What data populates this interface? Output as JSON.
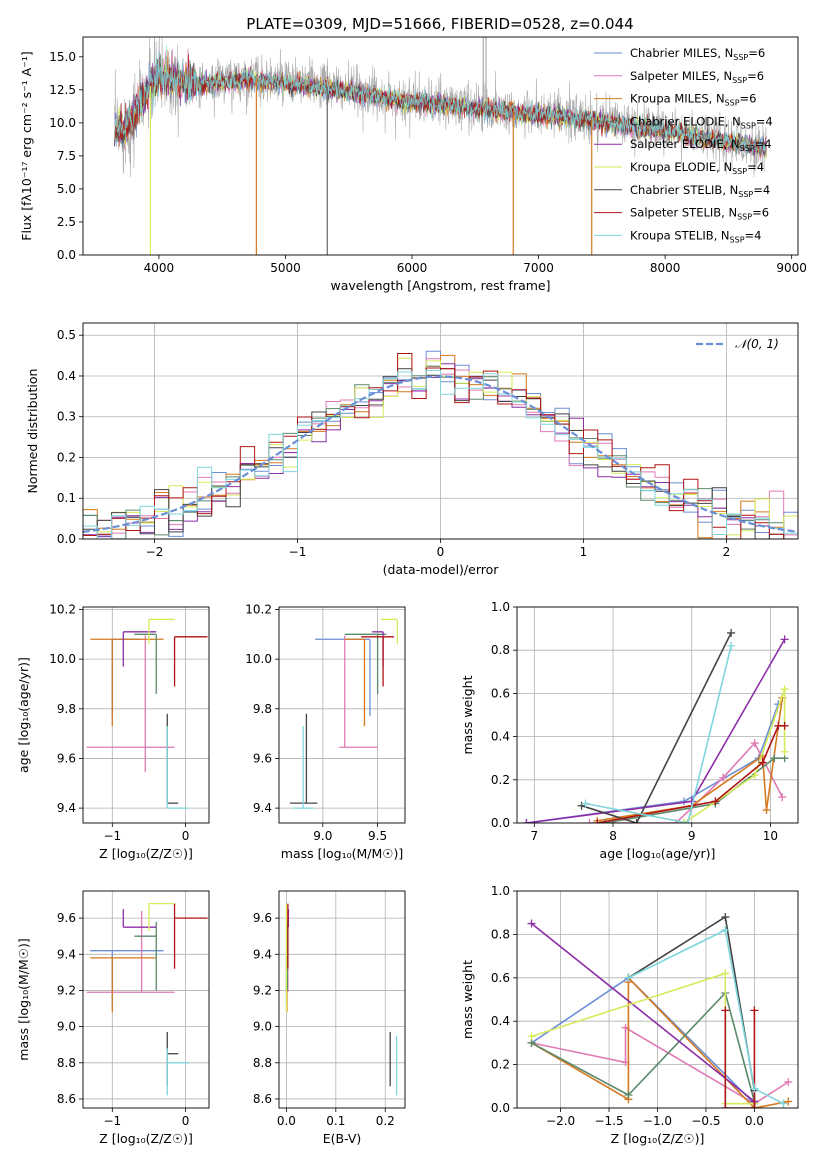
{
  "figure": {
    "title": "PLATE=0309, MJD=51666, FIBERID=0528, z=0.044"
  },
  "chart_data": [
    {
      "id": "spectrum",
      "type": "line",
      "xlabel": "wavelength [Angstrom, rest frame]",
      "ylabel": "Flux [fλ10⁻¹⁷ erg cm⁻² s⁻¹ A⁻¹]",
      "xlim": [
        3400,
        9050
      ],
      "ylim": [
        0,
        16.5
      ],
      "xticks": [
        4000,
        5000,
        6000,
        7000,
        8000,
        9000
      ],
      "yticks": [
        0.0,
        2.5,
        5.0,
        7.5,
        10.0,
        12.5,
        15.0
      ],
      "data_spectrum": {
        "color": "#aaaaaa",
        "x": [
          3650,
          3750,
          3900,
          4000,
          4100,
          4300,
          4500,
          4700,
          5000,
          5300,
          5600,
          5900,
          6200,
          6500,
          6800,
          7100,
          7400,
          7700,
          8000,
          8300,
          8600,
          8800
        ],
        "y": [
          9.5,
          9.7,
          12.3,
          13.8,
          13.5,
          13.0,
          13.2,
          13.4,
          13.1,
          12.8,
          12.3,
          11.8,
          11.5,
          11.2,
          10.9,
          10.6,
          10.3,
          9.9,
          9.5,
          9.0,
          8.5,
          8.1
        ]
      },
      "legend": [
        {
          "name": "Chabrier MILES, N",
          "sub": "SSP",
          "suffix": "=6",
          "color": "#6b8fd6"
        },
        {
          "name": "Salpeter MILES, N",
          "sub": "SSP",
          "suffix": "=6",
          "color": "#e07ab5"
        },
        {
          "name": "Kroupa MILES, N",
          "sub": "SSP",
          "suffix": "=6",
          "color": "#d5791f"
        },
        {
          "name": "Chabrier ELODIE, N",
          "sub": "SSP",
          "suffix": "=4",
          "color": "#5b8a6b"
        },
        {
          "name": "Salpeter ELODIE, N",
          "sub": "SSP",
          "suffix": "=4",
          "color": "#8c2ea8"
        },
        {
          "name": "Kroupa ELODIE, N",
          "sub": "SSP",
          "suffix": "=4",
          "color": "#d6ea5a"
        },
        {
          "name": "Chabrier STELIB, N",
          "sub": "SSP",
          "suffix": "=4",
          "color": "#444444"
        },
        {
          "name": "Salpeter STELIB, N",
          "sub": "SSP",
          "suffix": "=6",
          "color": "#b01515"
        },
        {
          "name": "Kroupa STELIB, N",
          "sub": "SSP",
          "suffix": "=4",
          "color": "#7fd6dc"
        }
      ]
    },
    {
      "id": "residuals",
      "type": "line",
      "xlabel": "(data-model)/error",
      "ylabel": "Normed distribution",
      "xlim": [
        -2.5,
        2.5
      ],
      "ylim": [
        0,
        0.53
      ],
      "xticks": [
        -2,
        -1,
        0,
        1,
        2
      ],
      "xtick_labels": [
        "−2",
        "−1",
        "0",
        "1",
        "2"
      ],
      "yticks": [
        0.0,
        0.1,
        0.2,
        0.3,
        0.4,
        0.5
      ],
      "legend": [
        {
          "name": "𝒩(0, 1)",
          "color": "#6b8fd6",
          "style": "dashed"
        }
      ],
      "bin_width": 0.1
    },
    {
      "id": "age_vs_Z",
      "type": "scatter",
      "xlabel": "Z [log₁₀(Z/Z☉)]",
      "ylabel": "age  [log₁₀(age/yr)]",
      "xlim": [
        -1.4,
        0.32
      ],
      "ylim": [
        9.34,
        10.21
      ],
      "xticks": [
        -1,
        0
      ],
      "xtick_labels": [
        "−1",
        "0"
      ],
      "yticks": [
        9.4,
        9.6,
        9.8,
        10.0,
        10.2
      ],
      "points": [
        {
          "x": -1.0,
          "y": 10.08,
          "ex": [
            -0.4,
            0.0
          ],
          "ey": [
            0.31,
            0.0
          ],
          "color": "#6b8fd6"
        },
        {
          "x": -0.55,
          "y": 9.645,
          "ex": [
            0.8,
            0.4
          ],
          "ey": [
            0.1,
            0.45
          ],
          "color": "#e07ab5"
        },
        {
          "x": -1.0,
          "y": 10.08,
          "ex": [
            0.3,
            0.7
          ],
          "ey": [
            0.35,
            0.0
          ],
          "color": "#d5791f"
        },
        {
          "x": -0.4,
          "y": 10.1,
          "ex": [
            0.3,
            0.0
          ],
          "ey": [
            0.24,
            0.0
          ],
          "color": "#5b8a6b"
        },
        {
          "x": -0.85,
          "y": 10.11,
          "ex": [
            0.0,
            0.45
          ],
          "ey": [
            0.14,
            0.0
          ],
          "color": "#8c2ea8"
        },
        {
          "x": -0.5,
          "y": 10.16,
          "ex": [
            0.0,
            0.35
          ],
          "ey": [
            0.1,
            0.0
          ],
          "color": "#d6ea5a"
        },
        {
          "x": -0.25,
          "y": 9.42,
          "ex": [
            0.0,
            0.15
          ],
          "ey": [
            0.0,
            0.36
          ],
          "color": "#444444"
        },
        {
          "x": -0.15,
          "y": 10.09,
          "ex": [
            0.0,
            0.45
          ],
          "ey": [
            0.2,
            0.0
          ],
          "color": "#b01515"
        },
        {
          "x": -0.25,
          "y": 9.4,
          "ex": [
            0.0,
            0.3
          ],
          "ey": [
            0.0,
            0.33
          ],
          "color": "#7fd6dc"
        }
      ]
    },
    {
      "id": "age_vs_mass",
      "type": "scatter",
      "xlabel": "mass [log₁₀(M/M☉)]",
      "ylabel": "",
      "xlim": [
        8.6,
        9.75
      ],
      "ylim": [
        9.34,
        10.21
      ],
      "xticks": [
        9.0,
        9.5
      ],
      "yticks": [
        9.4,
        9.6,
        9.8,
        10.0,
        10.2
      ],
      "points": [
        {
          "x": 9.43,
          "y": 10.08,
          "ex": [
            0.5,
            0.0
          ],
          "ey": [
            0.31,
            0.0
          ],
          "color": "#6b8fd6"
        },
        {
          "x": 9.2,
          "y": 9.645,
          "ex": [
            0.05,
            0.3
          ],
          "ey": [
            0.0,
            0.45
          ],
          "color": "#e07ab5"
        },
        {
          "x": 9.38,
          "y": 10.08,
          "ex": [
            0.18,
            0.0
          ],
          "ey": [
            0.35,
            0.0
          ],
          "color": "#d5791f"
        },
        {
          "x": 9.5,
          "y": 10.1,
          "ex": [
            0.3,
            0.08
          ],
          "ey": [
            0.24,
            0.0
          ],
          "color": "#5b8a6b"
        },
        {
          "x": 9.55,
          "y": 10.11,
          "ex": [
            0.1,
            0.0
          ],
          "ey": [
            0.14,
            0.0
          ],
          "color": "#8c2ea8"
        },
        {
          "x": 9.68,
          "y": 10.16,
          "ex": [
            0.15,
            0.0
          ],
          "ey": [
            0.1,
            0.0
          ],
          "color": "#d6ea5a"
        },
        {
          "x": 8.85,
          "y": 9.42,
          "ex": [
            0.15,
            0.1
          ],
          "ey": [
            0.0,
            0.36
          ],
          "color": "#444444"
        },
        {
          "x": 9.55,
          "y": 10.09,
          "ex": [
            0.2,
            0.1
          ],
          "ey": [
            0.2,
            0.0
          ],
          "color": "#b01515"
        },
        {
          "x": 8.82,
          "y": 9.4,
          "ex": [
            0.1,
            0.1
          ],
          "ey": [
            0.0,
            0.33
          ],
          "color": "#7fd6dc"
        }
      ]
    },
    {
      "id": "massweight_vs_age",
      "type": "line",
      "xlabel": "age  [log₁₀(age/yr)]",
      "ylabel": "mass weight",
      "xlim": [
        6.78,
        10.35
      ],
      "ylim": [
        0,
        1.0
      ],
      "xticks": [
        7,
        8,
        9,
        10
      ],
      "yticks": [
        0.0,
        0.2,
        0.4,
        0.6,
        0.8,
        1.0
      ],
      "series": [
        {
          "color": "#6b8fd6",
          "x": [
            6.9,
            8.9,
            9.85,
            10.1
          ],
          "y": [
            0.0,
            0.1,
            0.3,
            0.55
          ]
        },
        {
          "color": "#e07ab5",
          "x": [
            7.7,
            8.8,
            9.4,
            9.8,
            10.15
          ],
          "y": [
            0.0,
            0.0,
            0.21,
            0.37,
            0.12
          ]
        },
        {
          "color": "#d5791f",
          "x": [
            7.8,
            9.0,
            9.9,
            9.95,
            10.15
          ],
          "y": [
            0.01,
            0.08,
            0.31,
            0.06,
            0.58
          ]
        },
        {
          "color": "#5b8a6b",
          "x": [
            7.9,
            9.3,
            10.05,
            10.18
          ],
          "y": [
            0.0,
            0.09,
            0.3,
            0.3
          ]
        },
        {
          "color": "#8c2ea8",
          "x": [
            6.9,
            9.0,
            10.18
          ],
          "y": [
            0.0,
            0.1,
            0.85
          ]
        },
        {
          "color": "#d6ea5a",
          "x": [
            8.9,
            9.8,
            10.18,
            10.18
          ],
          "y": [
            0.0,
            0.22,
            0.62,
            0.33
          ]
        },
        {
          "color": "#444444",
          "x": [
            7.6,
            8.3,
            9.5
          ],
          "y": [
            0.08,
            0.0,
            0.88
          ]
        },
        {
          "color": "#b01515",
          "x": [
            7.8,
            9.3,
            9.9,
            10.1,
            10.18
          ],
          "y": [
            0.0,
            0.1,
            0.28,
            0.45,
            0.45
          ]
        },
        {
          "color": "#7fd6dc",
          "x": [
            7.65,
            8.95,
            9.5
          ],
          "y": [
            0.09,
            0.0,
            0.82
          ]
        }
      ]
    },
    {
      "id": "mass_vs_Z",
      "type": "scatter",
      "xlabel": "Z [log₁₀(Z/Z☉)]",
      "ylabel": "mass [log₁₀(M/M☉)]",
      "xlim": [
        -1.4,
        0.32
      ],
      "ylim": [
        8.55,
        9.75
      ],
      "xticks": [
        -1,
        0
      ],
      "xtick_labels": [
        "−1",
        "0"
      ],
      "yticks": [
        8.6,
        8.8,
        9.0,
        9.2,
        9.4,
        9.6
      ],
      "points": [
        {
          "x": -1.0,
          "y": 9.42,
          "ex": [
            0.3,
            0.7
          ],
          "ey": [
            0.3,
            0.0
          ],
          "color": "#6b8fd6"
        },
        {
          "x": -0.6,
          "y": 9.19,
          "ex": [
            0.75,
            0.45
          ],
          "ey": [
            0.0,
            0.45
          ],
          "color": "#e07ab5"
        },
        {
          "x": -1.0,
          "y": 9.38,
          "ex": [
            0.3,
            0.6
          ],
          "ey": [
            0.3,
            0.0
          ],
          "color": "#d5791f"
        },
        {
          "x": -0.4,
          "y": 9.5,
          "ex": [
            0.3,
            0.0
          ],
          "ey": [
            0.3,
            0.08
          ],
          "color": "#5b8a6b"
        },
        {
          "x": -0.85,
          "y": 9.55,
          "ex": [
            0.0,
            0.45
          ],
          "ey": [
            0.0,
            0.1
          ],
          "color": "#8c2ea8"
        },
        {
          "x": -0.5,
          "y": 9.68,
          "ex": [
            0.0,
            0.35
          ],
          "ey": [
            0.15,
            0.0
          ],
          "color": "#d6ea5a"
        },
        {
          "x": -0.25,
          "y": 8.85,
          "ex": [
            0.0,
            0.15
          ],
          "ey": [
            0.18,
            0.12
          ],
          "color": "#444444"
        },
        {
          "x": -0.15,
          "y": 9.6,
          "ex": [
            0.0,
            0.45
          ],
          "ey": [
            0.28,
            0.08
          ],
          "color": "#b01515"
        },
        {
          "x": -0.25,
          "y": 8.8,
          "ex": [
            0.0,
            0.3
          ],
          "ey": [
            0.18,
            0.08
          ],
          "color": "#7fd6dc"
        }
      ]
    },
    {
      "id": "mass_vs_ebv",
      "type": "scatter",
      "xlabel": "E(B-V)",
      "ylabel": "",
      "xlim": [
        -0.015,
        0.24
      ],
      "ylim": [
        8.55,
        9.75
      ],
      "xticks": [
        0.0,
        0.1,
        0.2
      ],
      "yticks": [
        8.6,
        8.8,
        9.0,
        9.2,
        9.4,
        9.6
      ],
      "points": [
        {
          "x": 0.0,
          "y": 9.42,
          "ex": [
            0,
            0
          ],
          "ey": [
            0.3,
            0.0
          ],
          "color": "#6b8fd6"
        },
        {
          "x": 0.003,
          "y": 9.19,
          "ex": [
            0,
            0
          ],
          "ey": [
            0.0,
            0.45
          ],
          "color": "#e07ab5"
        },
        {
          "x": 0.001,
          "y": 9.38,
          "ex": [
            0,
            0
          ],
          "ey": [
            0.3,
            0.0
          ],
          "color": "#d5791f"
        },
        {
          "x": 0.002,
          "y": 9.5,
          "ex": [
            0,
            0
          ],
          "ey": [
            0.3,
            0.08
          ],
          "color": "#5b8a6b"
        },
        {
          "x": 0.004,
          "y": 9.55,
          "ex": [
            0,
            0
          ],
          "ey": [
            0.0,
            0.1
          ],
          "color": "#8c2ea8"
        },
        {
          "x": 0.0,
          "y": 9.68,
          "ex": [
            0,
            0
          ],
          "ey": [
            0.6,
            0.0
          ],
          "color": "#d6ea5a"
        },
        {
          "x": 0.21,
          "y": 8.85,
          "ex": [
            0,
            0
          ],
          "ey": [
            0.18,
            0.12
          ],
          "color": "#444444"
        },
        {
          "x": 0.003,
          "y": 9.6,
          "ex": [
            0,
            0
          ],
          "ey": [
            0.28,
            0.08
          ],
          "color": "#b01515"
        },
        {
          "x": 0.223,
          "y": 8.8,
          "ex": [
            0,
            0
          ],
          "ey": [
            0.18,
            0.15
          ],
          "color": "#7fd6dc"
        }
      ]
    },
    {
      "id": "massweight_vs_Z",
      "type": "line",
      "xlabel": "Z [log₁₀(Z/Z☉)]",
      "ylabel": "mass weight",
      "xlim": [
        -2.45,
        0.45
      ],
      "ylim": [
        0,
        1.0
      ],
      "xticks": [
        -2.0,
        -1.5,
        -1.0,
        -0.5,
        0.0
      ],
      "xtick_labels": [
        "−2.0",
        "−1.5",
        "−1.0",
        "−0.5",
        "0.0"
      ],
      "yticks": [
        0.0,
        0.2,
        0.4,
        0.6,
        0.8,
        1.0
      ],
      "series": [
        {
          "color": "#6b8fd6",
          "x": [
            -2.3,
            -1.3,
            0.0
          ],
          "y": [
            0.3,
            0.6,
            0.02
          ]
        },
        {
          "color": "#e07ab5",
          "x": [
            -2.3,
            -1.33,
            -1.33,
            0.0,
            0.35
          ],
          "y": [
            0.3,
            0.21,
            0.37,
            0.02,
            0.12
          ]
        },
        {
          "color": "#d5791f",
          "x": [
            -2.3,
            -1.3,
            -1.3,
            -1.3,
            0.0,
            0.35
          ],
          "y": [
            0.3,
            0.04,
            0.58,
            0.6,
            0.0,
            0.03
          ]
        },
        {
          "color": "#5b8a6b",
          "x": [
            -2.3,
            -1.3,
            -0.3,
            0.0
          ],
          "y": [
            0.3,
            0.06,
            0.53,
            0.03
          ]
        },
        {
          "color": "#8c2ea8",
          "x": [
            -2.3,
            0.0
          ],
          "y": [
            0.85,
            0.03
          ]
        },
        {
          "color": "#d6ea5a",
          "x": [
            -2.3,
            -0.3,
            -0.3,
            0.0
          ],
          "y": [
            0.33,
            0.62,
            0.02,
            0.02
          ]
        },
        {
          "color": "#444444",
          "x": [
            -1.3,
            -0.3,
            0.0,
            0.0
          ],
          "y": [
            0.6,
            0.88,
            0.08,
            0.0
          ]
        },
        {
          "color": "#b01515",
          "x": [
            -0.3,
            -0.3,
            0.0,
            0.0
          ],
          "y": [
            0.45,
            0.0,
            0.0,
            0.45
          ]
        },
        {
          "color": "#7fd6dc",
          "x": [
            -1.3,
            -0.3,
            0.0,
            0.3
          ],
          "y": [
            0.6,
            0.82,
            0.09,
            0.02
          ]
        }
      ]
    }
  ]
}
